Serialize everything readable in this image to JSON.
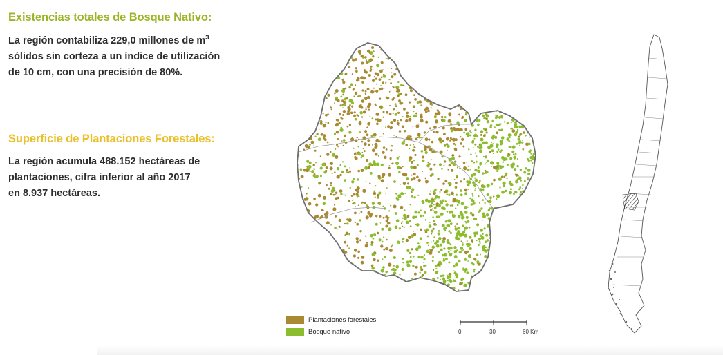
{
  "section1": {
    "heading": "Existencias totales de Bosque Nativo:",
    "heading_color": "#9ab524",
    "text_before_sup": "La región contabiliza 229,0 millones de m",
    "text_sup": "3",
    "text_line2": "sólidos sin corteza a un índice de utilización",
    "text_line3": "de 10 cm, con una precisión de 80%."
  },
  "section2": {
    "heading": "Superficie de Plantaciones Forestales:",
    "heading_color": "#e9c02a",
    "line1": "La región acumula 488.152 hectáreas de",
    "line2": "plantaciones, cifra inferior al año 2017",
    "line3": "en 8.937 hectáreas."
  },
  "legend": {
    "items": [
      {
        "label": "Plantaciones forestales",
        "color": "#a98a33"
      },
      {
        "label": "Bosque nativo",
        "color": "#8cbd2f"
      }
    ]
  },
  "scale": {
    "ticks": [
      "0",
      "30",
      "60 Km"
    ]
  },
  "map_colors": {
    "plantation": "#a98a33",
    "native": "#8cbd2f",
    "outline": "#6e6e6e"
  }
}
